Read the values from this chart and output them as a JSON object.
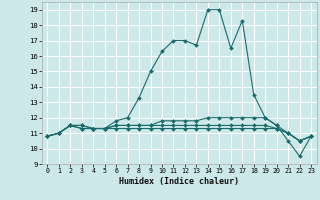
{
  "xlabel": "Humidex (Indice chaleur)",
  "background_color": "#cce8e8",
  "grid_color": "#ffffff",
  "line_color": "#1a6b6b",
  "xlim": [
    -0.5,
    23.5
  ],
  "ylim": [
    9,
    19.5
  ],
  "yticks": [
    9,
    10,
    11,
    12,
    13,
    14,
    15,
    16,
    17,
    18,
    19
  ],
  "xticks": [
    0,
    1,
    2,
    3,
    4,
    5,
    6,
    7,
    8,
    9,
    10,
    11,
    12,
    13,
    14,
    15,
    16,
    17,
    18,
    19,
    20,
    21,
    22,
    23
  ],
  "lines": [
    {
      "x": [
        0,
        1,
        2,
        3,
        4,
        5,
        6,
        7,
        8,
        9,
        10,
        11,
        12,
        13,
        14,
        15,
        16,
        17,
        18,
        19,
        20,
        21,
        22,
        23
      ],
      "y": [
        10.8,
        11.0,
        11.5,
        11.5,
        11.3,
        11.3,
        11.8,
        12.0,
        13.3,
        15.0,
        16.3,
        17.0,
        17.0,
        16.7,
        19.0,
        19.0,
        16.5,
        18.3,
        13.5,
        12.0,
        11.5,
        10.5,
        9.5,
        10.8
      ]
    },
    {
      "x": [
        0,
        1,
        2,
        3,
        4,
        5,
        6,
        7,
        8,
        9,
        10,
        11,
        12,
        13,
        14,
        15,
        16,
        17,
        18,
        19,
        20,
        21,
        22,
        23
      ],
      "y": [
        10.8,
        11.0,
        11.5,
        11.5,
        11.3,
        11.3,
        11.5,
        11.5,
        11.5,
        11.5,
        11.8,
        11.8,
        11.8,
        11.8,
        12.0,
        12.0,
        12.0,
        12.0,
        12.0,
        12.0,
        11.5,
        11.0,
        10.5,
        10.8
      ]
    },
    {
      "x": [
        0,
        1,
        2,
        3,
        4,
        5,
        6,
        7,
        8,
        9,
        10,
        11,
        12,
        13,
        14,
        15,
        16,
        17,
        18,
        19,
        20,
        21,
        22,
        23
      ],
      "y": [
        10.8,
        11.0,
        11.5,
        11.3,
        11.3,
        11.3,
        11.3,
        11.3,
        11.3,
        11.3,
        11.3,
        11.3,
        11.3,
        11.3,
        11.3,
        11.3,
        11.3,
        11.3,
        11.3,
        11.3,
        11.3,
        11.0,
        10.5,
        10.8
      ]
    },
    {
      "x": [
        0,
        1,
        2,
        3,
        4,
        5,
        6,
        7,
        8,
        9,
        10,
        11,
        12,
        13,
        14,
        15,
        16,
        17,
        18,
        19,
        20,
        21,
        22,
        23
      ],
      "y": [
        10.8,
        11.0,
        11.5,
        11.3,
        11.3,
        11.3,
        11.5,
        11.5,
        11.5,
        11.5,
        11.5,
        11.5,
        11.5,
        11.5,
        11.5,
        11.5,
        11.5,
        11.5,
        11.5,
        11.5,
        11.3,
        11.0,
        10.5,
        10.8
      ]
    }
  ]
}
